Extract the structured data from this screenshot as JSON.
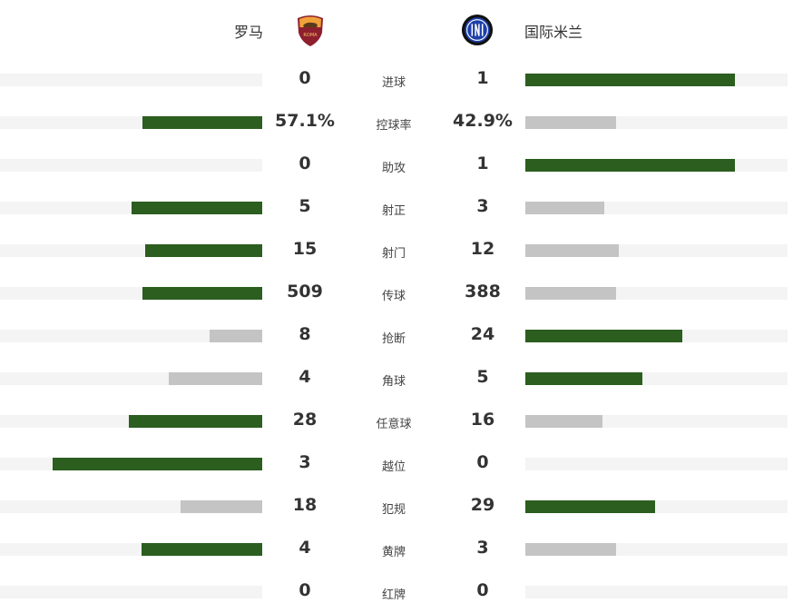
{
  "home": {
    "name": "罗马",
    "logo_icon": "as-roma-crest"
  },
  "away": {
    "name": "国际米兰",
    "logo_icon": "inter-milan-crest"
  },
  "colors": {
    "leader": "#2b5e1f",
    "trailer": "#c4c4c4",
    "track": "#f4f4f4"
  },
  "stats": [
    {
      "label": "进球",
      "home": "0",
      "away": "1",
      "home_fill": 0,
      "away_fill": 0.8,
      "leader": "away"
    },
    {
      "label": "控球率",
      "home": "57.1%",
      "away": "42.9%",
      "home_fill": 0.457,
      "away_fill": 0.346,
      "leader": "home"
    },
    {
      "label": "助攻",
      "home": "0",
      "away": "1",
      "home_fill": 0,
      "away_fill": 0.8,
      "leader": "away"
    },
    {
      "label": "射正",
      "home": "5",
      "away": "3",
      "home_fill": 0.5,
      "away_fill": 0.3,
      "leader": "home"
    },
    {
      "label": "射门",
      "home": "15",
      "away": "12",
      "home_fill": 0.446,
      "away_fill": 0.356,
      "leader": "home"
    },
    {
      "label": "传球",
      "home": "509",
      "away": "388",
      "home_fill": 0.457,
      "away_fill": 0.346,
      "leader": "home"
    },
    {
      "label": "抢断",
      "home": "8",
      "away": "24",
      "home_fill": 0.2,
      "away_fill": 0.6,
      "leader": "away"
    },
    {
      "label": "角球",
      "home": "4",
      "away": "5",
      "home_fill": 0.356,
      "away_fill": 0.446,
      "leader": "away"
    },
    {
      "label": "任意球",
      "home": "28",
      "away": "16",
      "home_fill": 0.51,
      "away_fill": 0.294,
      "leader": "home"
    },
    {
      "label": "越位",
      "home": "3",
      "away": "0",
      "home_fill": 0.8,
      "away_fill": 0,
      "leader": "home"
    },
    {
      "label": "犯规",
      "home": "18",
      "away": "29",
      "home_fill": 0.31,
      "away_fill": 0.495,
      "leader": "away"
    },
    {
      "label": "黄牌",
      "home": "4",
      "away": "3",
      "home_fill": 0.46,
      "away_fill": 0.346,
      "leader": "home"
    },
    {
      "label": "红牌",
      "home": "0",
      "away": "0",
      "home_fill": 0,
      "away_fill": 0,
      "leader": "none"
    }
  ]
}
